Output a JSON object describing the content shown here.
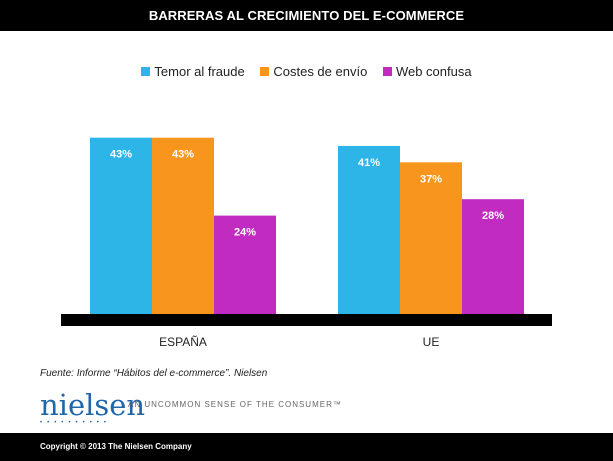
{
  "header": {
    "title": "BARRERAS AL CRECIMIENTO DEL E-COMMERCE"
  },
  "legend": [
    {
      "label": "Temor al fraude",
      "color": "#2cb5e6"
    },
    {
      "label": "Costes de envío",
      "color": "#f7951d"
    },
    {
      "label": "Web confusa",
      "color": "#c12bbf"
    }
  ],
  "chart_data": {
    "type": "bar",
    "title": "BARRERAS AL CRECIMIENTO DEL E-COMMERCE",
    "categories": [
      "ESPAÑA",
      "UE"
    ],
    "series": [
      {
        "name": "Temor al fraude",
        "values": [
          43,
          41
        ],
        "labels": [
          "43%",
          "41%"
        ],
        "color": "#2cb5e6"
      },
      {
        "name": "Costes de envío",
        "values": [
          43,
          37
        ],
        "labels": [
          "43%",
          "37%"
        ],
        "color": "#f7951d"
      },
      {
        "name": "Web confusa",
        "values": [
          24,
          28
        ],
        "labels": [
          "24%",
          "28%"
        ],
        "color": "#c12bbf"
      }
    ],
    "ylim": [
      0,
      50
    ],
    "unit": "%",
    "grid": false,
    "legend_position": "top"
  },
  "source": "Fuente: Informe “Hábitos del e-commerce”. Nielsen",
  "brand": {
    "logo_text": "nielsen",
    "tagline": "AN UNCOMMON SENSE OF THE CONSUMER™"
  },
  "footer": {
    "copyright": "Copyright © 2013 The Nielsen Company"
  }
}
